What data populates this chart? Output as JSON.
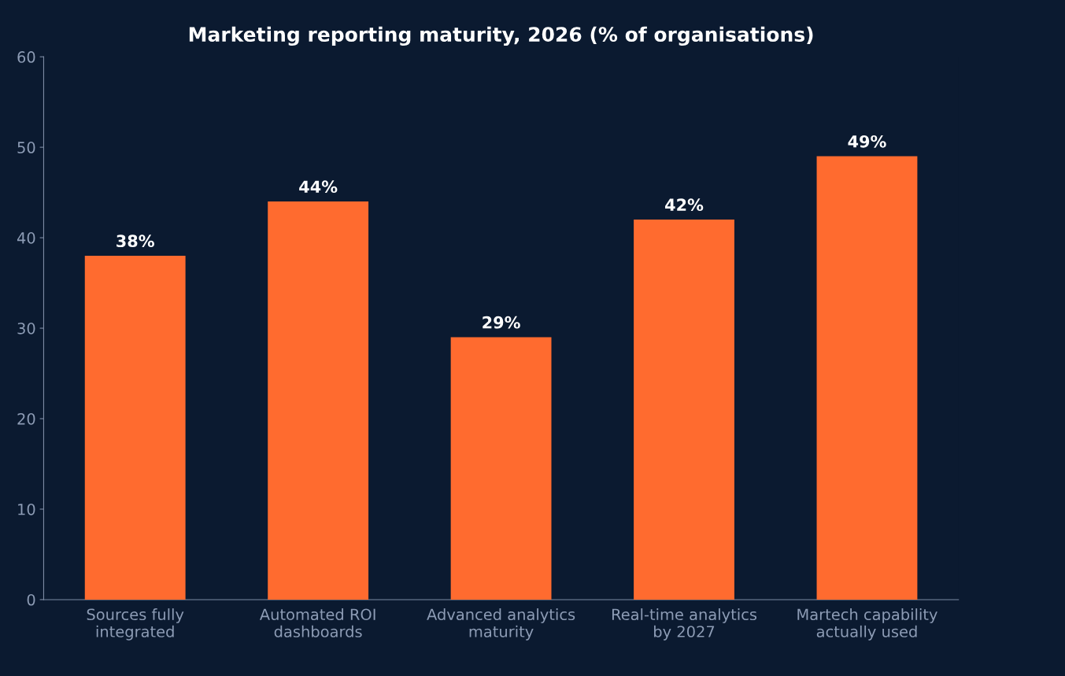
{
  "chart_data": {
    "type": "bar",
    "title": "Marketing reporting maturity, 2026 (% of organisations)",
    "categories": [
      "Sources fully\nintegrated",
      "Automated ROI\ndashboards",
      "Advanced analytics\nmaturity",
      "Real-time analytics\nby 2027",
      "Martech capability\nactually used"
    ],
    "values": [
      38,
      44,
      29,
      42,
      49
    ],
    "value_labels": [
      "38%",
      "44%",
      "29%",
      "42%",
      "49%"
    ],
    "color": "#ff6b2f",
    "ylim": [
      0,
      60
    ],
    "yticks": [
      0,
      10,
      20,
      30,
      40,
      50,
      60
    ],
    "grid": false,
    "legend": false
  }
}
